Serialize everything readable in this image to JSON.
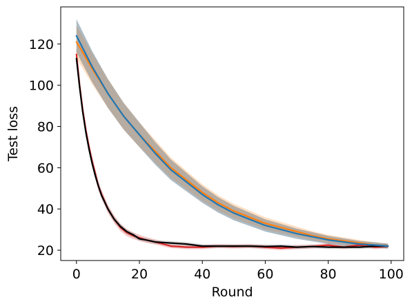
{
  "chart_data": {
    "type": "line",
    "title": "",
    "xlabel": "Round",
    "ylabel": "Test loss",
    "xlim": [
      -5,
      104
    ],
    "ylim": [
      15,
      138
    ],
    "xticks": [
      0,
      20,
      40,
      60,
      80,
      100
    ],
    "yticks": [
      20,
      40,
      60,
      80,
      100,
      120
    ],
    "grid": false,
    "series": [
      {
        "color": "#1f77b4",
        "band_color": "#1f77b4",
        "band_halfwidth": [
          8,
          7,
          6,
          5,
          4,
          3.5,
          3,
          2.5,
          2,
          1.5,
          1.2
        ],
        "x": [
          0,
          2,
          5,
          10,
          15,
          20,
          25,
          30,
          35,
          40,
          45,
          50,
          55,
          60,
          65,
          70,
          75,
          80,
          85,
          90,
          95,
          99
        ],
        "values": [
          124,
          118,
          109,
          96,
          85,
          76,
          67,
          59,
          53,
          47,
          42,
          38,
          35,
          32,
          30,
          28,
          26.5,
          25,
          24,
          23,
          22.5,
          22
        ]
      },
      {
        "color": "#ff7f0e",
        "band_color": "#ff7f0e",
        "band_halfwidth": [
          8,
          7,
          6,
          5,
          4,
          3.5,
          3,
          2.5,
          2,
          1.5,
          1.2
        ],
        "x": [
          0,
          2,
          5,
          10,
          15,
          20,
          25,
          30,
          35,
          40,
          45,
          50,
          55,
          60,
          65,
          70,
          75,
          80,
          85,
          90,
          95,
          99
        ],
        "values": [
          121,
          116,
          108,
          96,
          85,
          76,
          68,
          60,
          54,
          48,
          43,
          39,
          36,
          33,
          31,
          29,
          27,
          25.5,
          24.5,
          23.5,
          22.5,
          22
        ]
      },
      {
        "color": "#d62728",
        "band_color": "#d62728",
        "band_halfwidth": [
          3,
          2,
          1.5,
          1,
          1,
          1,
          1,
          1,
          1,
          1,
          1
        ],
        "x": [
          0,
          1,
          2,
          3,
          4,
          5,
          6,
          7,
          8,
          10,
          12,
          14,
          16,
          18,
          20,
          22,
          25,
          30,
          35,
          40,
          45,
          50,
          55,
          60,
          65,
          70,
          75,
          80,
          85,
          90,
          95,
          99
        ],
        "values": [
          115,
          100,
          88,
          78,
          70,
          63,
          57,
          51,
          47,
          40,
          35,
          31,
          28.5,
          27,
          26,
          25,
          24,
          22,
          21.5,
          21.5,
          22,
          21.8,
          22,
          21.5,
          21,
          21.5,
          21.8,
          22.5,
          21.5,
          22.5,
          21.5,
          22
        ]
      },
      {
        "color": "#000000",
        "band_color": "#7f7f7f",
        "band_halfwidth": [
          2,
          1.5,
          1,
          1,
          1,
          1,
          1,
          1,
          1,
          1,
          1
        ],
        "x": [
          0,
          1,
          2,
          3,
          4,
          5,
          6,
          7,
          8,
          10,
          12,
          14,
          16,
          18,
          20,
          22,
          25,
          30,
          35,
          40,
          45,
          50,
          55,
          60,
          65,
          70,
          75,
          80,
          85,
          90,
          95,
          99
        ],
        "values": [
          113,
          99,
          87,
          77,
          69,
          62,
          56,
          51,
          46.5,
          40,
          35,
          31.5,
          29,
          27.5,
          25.5,
          25,
          24,
          23.5,
          23,
          22,
          22,
          22,
          22,
          21.8,
          22,
          21.5,
          21.8,
          21.5,
          21.5,
          21.5,
          22,
          22
        ]
      },
      {
        "color": "#1f77b4",
        "band_color": "#7f7f7f",
        "band_halfwidth": [
          8,
          7,
          6,
          5,
          4,
          3.5,
          3,
          2.5,
          2,
          1.5,
          1.2
        ],
        "x": [
          0,
          2,
          5,
          10,
          15,
          20,
          25,
          30,
          35,
          40,
          45,
          50,
          55,
          60,
          65,
          70,
          75,
          80,
          85,
          90,
          95,
          99
        ],
        "values": [
          124,
          118,
          109,
          96,
          85,
          76,
          67,
          59,
          53,
          47,
          42,
          38,
          35,
          32,
          30,
          28,
          26.5,
          25,
          24,
          23,
          22.5,
          22
        ]
      }
    ]
  }
}
